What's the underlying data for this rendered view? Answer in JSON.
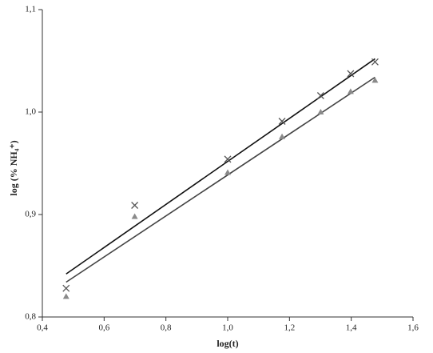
{
  "chart_data": {
    "type": "scatter",
    "xlabel": "log(t)",
    "ylabel": "log (% NH₄⁺)",
    "xlim": [
      0.4,
      1.6
    ],
    "xticks": [
      {
        "value": 0.4,
        "label": "0,4"
      },
      {
        "value": 0.6,
        "label": "0,6"
      },
      {
        "value": 0.8,
        "label": "0,8"
      },
      {
        "value": 1.0,
        "label": "1,0"
      },
      {
        "value": 1.2,
        "label": "1,2"
      },
      {
        "value": 1.4,
        "label": "1,4"
      },
      {
        "value": 1.6,
        "label": "1,6"
      }
    ],
    "ylim": [
      0.8,
      1.1
    ],
    "yticks": [
      {
        "value": 0.8,
        "label": "0,8"
      },
      {
        "value": 0.9,
        "label": "0,9"
      },
      {
        "value": 1.0,
        "label": "1,0"
      },
      {
        "value": 1.1,
        "label": "1,1"
      }
    ],
    "grid": false,
    "series": [
      {
        "marker": "x",
        "color": "#555555",
        "line_color": "#111111",
        "x": [
          0.477,
          0.699,
          1.0,
          1.176,
          1.301,
          1.398,
          1.477
        ],
        "values": [
          0.828,
          0.909,
          0.954,
          0.991,
          1.016,
          1.0375,
          1.049
        ],
        "trendline": {
          "x": [
            0.477,
            1.477
          ],
          "values": [
            0.842,
            1.052
          ]
        }
      },
      {
        "marker": "triangle",
        "color": "#8a8a8a",
        "line_color": "#444444",
        "x": [
          0.477,
          0.699,
          1.0,
          1.176,
          1.301,
          1.398,
          1.477
        ],
        "values": [
          0.82,
          0.898,
          0.941,
          0.976,
          1.0,
          1.02,
          1.031
        ],
        "trendline": {
          "x": [
            0.477,
            1.477
          ],
          "values": [
            0.834,
            1.034
          ]
        }
      }
    ]
  }
}
